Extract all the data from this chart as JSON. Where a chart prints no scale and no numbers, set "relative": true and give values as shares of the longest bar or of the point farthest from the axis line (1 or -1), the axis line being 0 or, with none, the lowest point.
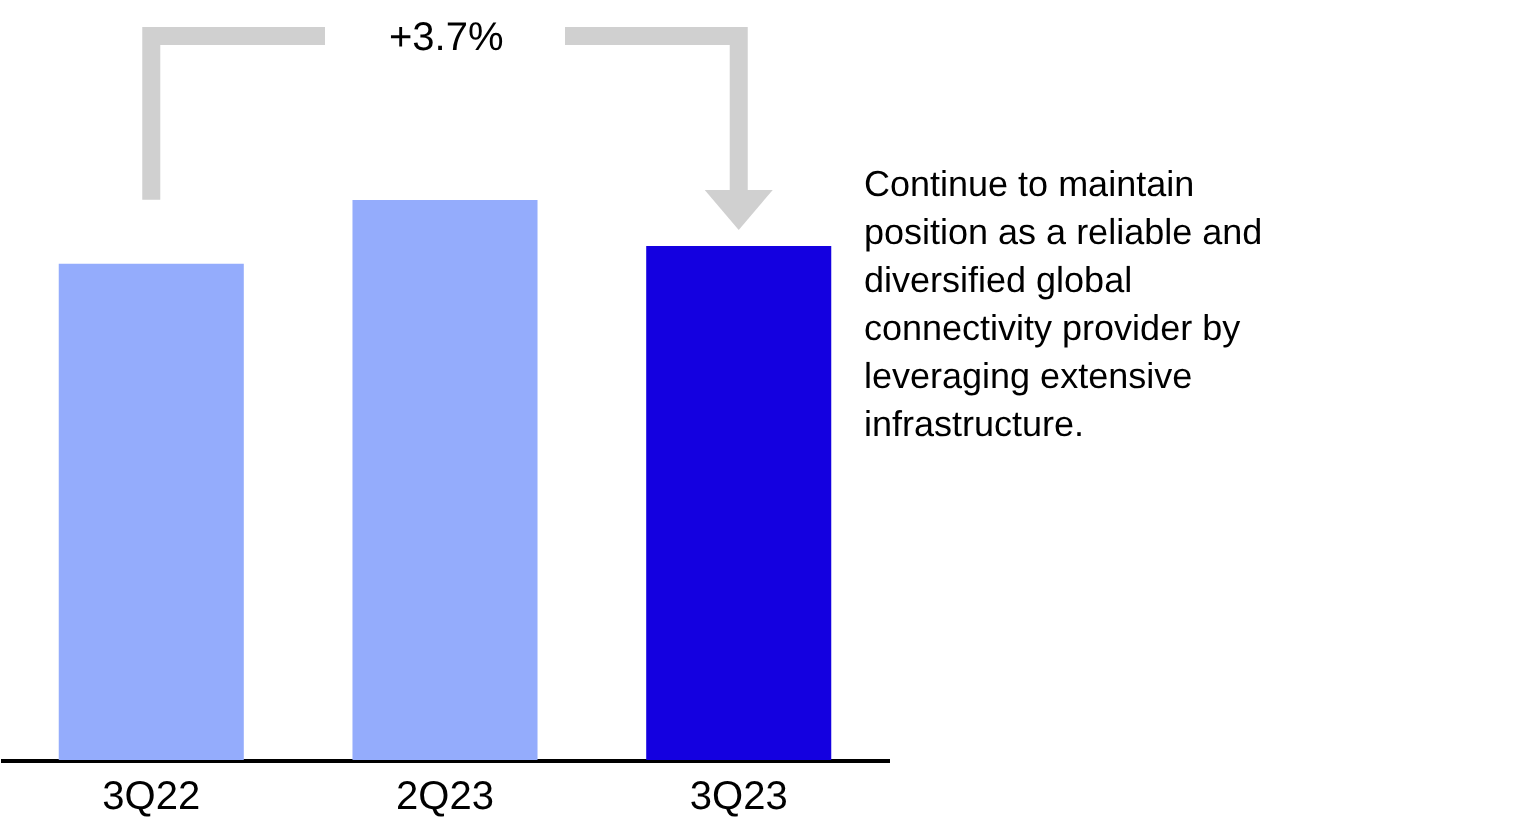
{
  "chart_data": {
    "type": "bar",
    "relative": true,
    "categories": [
      "3Q22",
      "2Q23",
      "3Q23"
    ],
    "values": [
      0.886,
      1,
      0.918
    ],
    "colors": [
      "#94acfc",
      "#94acfc",
      "#1400e0"
    ],
    "annotations": [
      "+3.7%",
      "Continue to maintain position as a reliable and diversified global connectivity provider by leveraging extensive infrastructure."
    ]
  }
}
